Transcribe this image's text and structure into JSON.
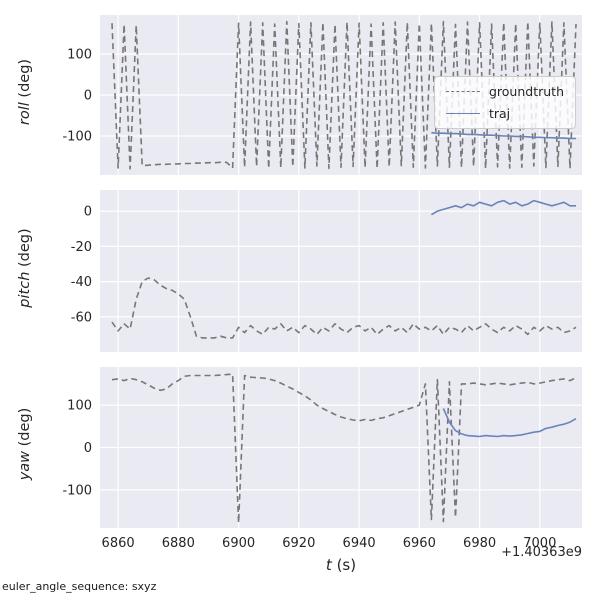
{
  "figure": {
    "background": "#ffffff",
    "axes_background": "#eaeaf2",
    "grid_color": "#ffffff",
    "text_color": "#262626",
    "footer": "euler_angle_sequence: sxyz",
    "x_offset_label": "+1.40363e9",
    "xlabel_var": "t",
    "xlabel_unit": " (s)",
    "xlim": [
      6854,
      7014
    ],
    "xticks": [
      6860,
      6880,
      6900,
      6920,
      6940,
      6960,
      6980,
      7000
    ]
  },
  "legend": {
    "entries": [
      {
        "label": "groundtruth",
        "color": "#777777",
        "style": "dashed"
      },
      {
        "label": "traj",
        "color": "#6b84b8",
        "style": "solid"
      }
    ]
  },
  "chart_data": [
    {
      "type": "line",
      "id": "roll",
      "ylabel_var": "roll",
      "ylabel_unit": " (deg)",
      "ylim": [
        -195,
        195
      ],
      "yticks": [
        100,
        0,
        -100
      ],
      "series": [
        {
          "name": "groundtruth",
          "color": "#777777",
          "dash": true,
          "x": [
            6858,
            6860,
            6862,
            6864,
            6866,
            6868,
            6870,
            6872,
            6874,
            6876,
            6878,
            6880,
            6882,
            6884,
            6886,
            6888,
            6890,
            6892,
            6894,
            6896,
            6898,
            6900,
            6902,
            6904,
            6906,
            6908,
            6910,
            6912,
            6914,
            6916,
            6918,
            6920,
            6922,
            6924,
            6926,
            6928,
            6930,
            6932,
            6934,
            6936,
            6938,
            6940,
            6942,
            6944,
            6946,
            6948,
            6950,
            6952,
            6954,
            6956,
            6958,
            6960,
            6962,
            6964,
            6966,
            6968,
            6970,
            6972,
            6974,
            6976,
            6978,
            6980,
            6982,
            6984,
            6986,
            6988,
            6990,
            6992,
            6994,
            6996,
            6998,
            7000,
            7002,
            7004,
            7006,
            7008,
            7010,
            7012
          ],
          "y": [
            175,
            -178,
            172,
            -180,
            170,
            -172,
            -171,
            -170,
            -169,
            -169,
            -168,
            -168,
            -167,
            -167,
            -166,
            -166,
            -165,
            -165,
            -164,
            -164,
            -178,
            175,
            -176,
            178,
            -174,
            176,
            -179,
            173,
            -177,
            179,
            -175,
            174,
            -178,
            176,
            -173,
            177,
            -179,
            172,
            -176,
            178,
            -174,
            175,
            -177,
            173,
            -179,
            176,
            -175,
            178,
            -172,
            177,
            -176,
            174,
            -178,
            175,
            -173,
            179,
            -176,
            172,
            -177,
            178,
            -174,
            176,
            -179,
            173,
            -175,
            177,
            -178,
            174,
            -176,
            179,
            -173,
            175,
            -177,
            178,
            -174,
            176,
            -179,
            173
          ]
        },
        {
          "name": "traj",
          "color": "#6b84b8",
          "dash": false,
          "x": [
            6964,
            6966,
            6968,
            6970,
            6972,
            6974,
            6976,
            6978,
            6980,
            6982,
            6984,
            6986,
            6988,
            6990,
            6992,
            6994,
            6996,
            6998,
            7000,
            7002,
            7004,
            7006,
            7008,
            7010,
            7012
          ],
          "y": [
            -92,
            -93,
            -93,
            -94,
            -94,
            -95,
            -96,
            -96,
            -97,
            -98,
            -98,
            -99,
            -100,
            -100,
            -101,
            -101,
            -102,
            -103,
            -103,
            -104,
            -104,
            -105,
            -105,
            -106,
            -106
          ]
        }
      ]
    },
    {
      "type": "line",
      "id": "pitch",
      "ylabel_var": "pitch",
      "ylabel_unit": " (deg)",
      "ylim": [
        -80,
        12
      ],
      "yticks": [
        0,
        -20,
        -40,
        -60
      ],
      "series": [
        {
          "name": "groundtruth",
          "color": "#777777",
          "dash": true,
          "x": [
            6858,
            6860,
            6862,
            6864,
            6866,
            6868,
            6870,
            6872,
            6874,
            6876,
            6878,
            6880,
            6882,
            6884,
            6886,
            6888,
            6890,
            6892,
            6894,
            6896,
            6898,
            6900,
            6902,
            6904,
            6906,
            6908,
            6910,
            6912,
            6914,
            6916,
            6918,
            6920,
            6922,
            6924,
            6926,
            6928,
            6930,
            6932,
            6934,
            6936,
            6938,
            6940,
            6942,
            6944,
            6946,
            6948,
            6950,
            6952,
            6954,
            6956,
            6958,
            6960,
            6962,
            6964,
            6966,
            6968,
            6970,
            6972,
            6974,
            6976,
            6978,
            6980,
            6982,
            6984,
            6986,
            6988,
            6990,
            6992,
            6994,
            6996,
            6998,
            7000,
            7002,
            7004,
            7006,
            7008,
            7010,
            7012
          ],
          "y": [
            -63,
            -68,
            -64,
            -67,
            -50,
            -40,
            -38,
            -39,
            -42,
            -44,
            -45,
            -47,
            -50,
            -60,
            -71,
            -72,
            -72,
            -72,
            -71,
            -72,
            -72,
            -66,
            -69,
            -65,
            -68,
            -70,
            -66,
            -67,
            -64,
            -68,
            -66,
            -69,
            -65,
            -67,
            -70,
            -66,
            -68,
            -64,
            -67,
            -69,
            -66,
            -65,
            -68,
            -66,
            -70,
            -67,
            -65,
            -68,
            -66,
            -69,
            -64,
            -67,
            -66,
            -68,
            -65,
            -70,
            -66,
            -67,
            -69,
            -65,
            -68,
            -66,
            -64,
            -67,
            -69,
            -66,
            -68,
            -65,
            -67,
            -70,
            -66,
            -68,
            -65,
            -67,
            -66,
            -69,
            -68,
            -66
          ]
        },
        {
          "name": "traj",
          "color": "#6b84b8",
          "dash": false,
          "x": [
            6964,
            6966,
            6968,
            6970,
            6972,
            6974,
            6976,
            6978,
            6980,
            6982,
            6984,
            6986,
            6988,
            6990,
            6992,
            6994,
            6996,
            6998,
            7000,
            7002,
            7004,
            7006,
            7008,
            7010,
            7012
          ],
          "y": [
            -2,
            0,
            1,
            2,
            3,
            2,
            4,
            3,
            5,
            4,
            3,
            5,
            6,
            4,
            5,
            3,
            4,
            6,
            5,
            4,
            3,
            4,
            5,
            3,
            3
          ]
        }
      ]
    },
    {
      "type": "line",
      "id": "yaw",
      "ylabel_var": "yaw",
      "ylabel_unit": " (deg)",
      "ylim": [
        -190,
        190
      ],
      "yticks": [
        100,
        0,
        -100
      ],
      "series": [
        {
          "name": "groundtruth",
          "color": "#777777",
          "dash": true,
          "x": [
            6858,
            6860,
            6862,
            6864,
            6866,
            6868,
            6870,
            6872,
            6874,
            6876,
            6878,
            6880,
            6882,
            6884,
            6886,
            6888,
            6890,
            6892,
            6894,
            6896,
            6898,
            6900,
            6902,
            6904,
            6906,
            6908,
            6910,
            6912,
            6914,
            6916,
            6918,
            6920,
            6922,
            6924,
            6926,
            6928,
            6930,
            6932,
            6934,
            6936,
            6938,
            6940,
            6942,
            6944,
            6946,
            6948,
            6950,
            6952,
            6954,
            6956,
            6958,
            6960,
            6962,
            6964,
            6966,
            6968,
            6970,
            6972,
            6974,
            6976,
            6978,
            6980,
            6982,
            6984,
            6986,
            6988,
            6990,
            6992,
            6994,
            6996,
            6998,
            7000,
            7002,
            7004,
            7006,
            7008,
            7010,
            7012
          ],
          "y": [
            160,
            162,
            158,
            163,
            160,
            155,
            148,
            140,
            135,
            138,
            150,
            158,
            168,
            170,
            170,
            170,
            170,
            170,
            171,
            172,
            173,
            -178,
            170,
            166,
            165,
            164,
            162,
            158,
            152,
            145,
            138,
            130,
            122,
            112,
            100,
            92,
            85,
            78,
            72,
            68,
            65,
            63,
            66,
            64,
            68,
            70,
            75,
            80,
            85,
            90,
            95,
            100,
            150,
            -170,
            160,
            -175,
            155,
            -165,
            150,
            150,
            152,
            150,
            148,
            150,
            152,
            150,
            148,
            150,
            152,
            154,
            150,
            152,
            155,
            158,
            160,
            162,
            158,
            165
          ]
        },
        {
          "name": "traj",
          "color": "#6b84b8",
          "dash": false,
          "x": [
            6968,
            6970,
            6972,
            6974,
            6976,
            6978,
            6980,
            6982,
            6984,
            6986,
            6988,
            6990,
            6992,
            6994,
            6996,
            6998,
            7000,
            7002,
            7004,
            7006,
            7008,
            7010,
            7012
          ],
          "y": [
            92,
            60,
            40,
            32,
            28,
            27,
            26,
            28,
            27,
            26,
            28,
            27,
            28,
            30,
            33,
            36,
            38,
            45,
            48,
            52,
            55,
            60,
            68
          ]
        }
      ]
    }
  ]
}
